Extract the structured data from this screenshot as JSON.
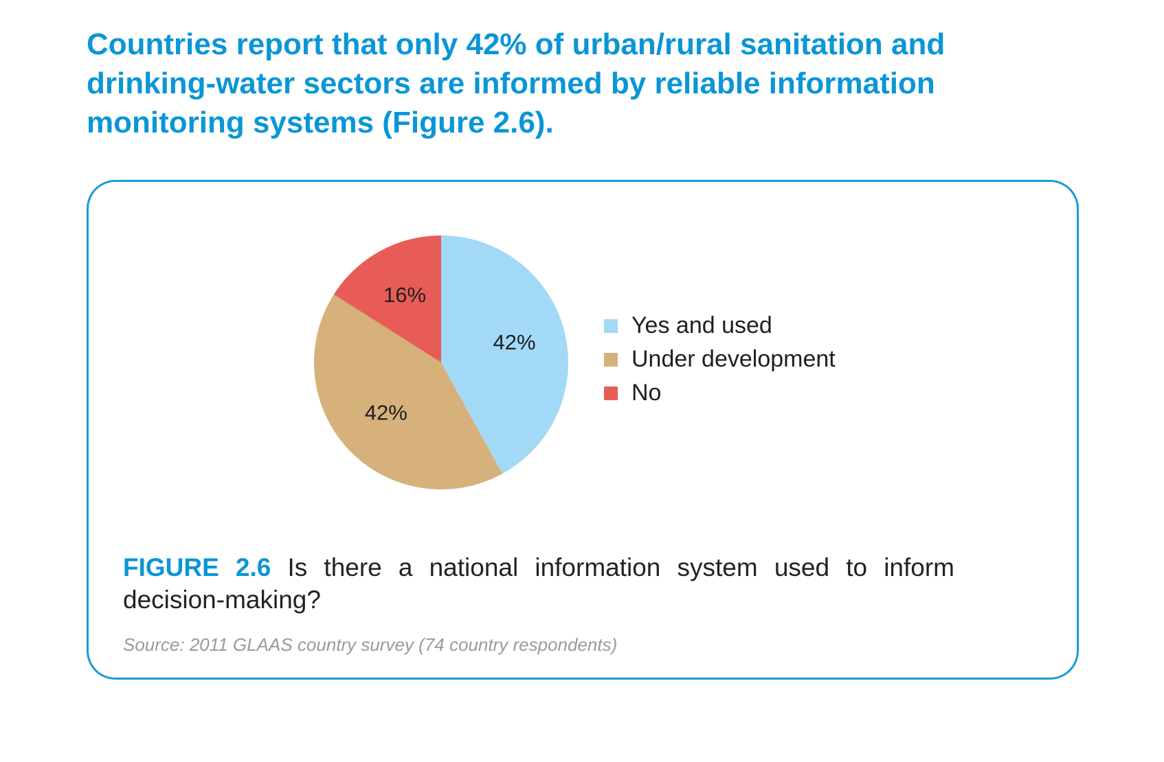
{
  "headline": "Countries report that only 42% of urban/rural sanitation and drinking-water sectors are informed by reliable information monitoring systems (Figure 2.6).",
  "figure": {
    "number": "FIGURE 2.6",
    "caption": "Is there a national information system used to inform decision-making?",
    "source": "Source: 2011 GLAAS country survey (74 country respondents)"
  },
  "chart_data": {
    "type": "pie",
    "title": "",
    "slices": [
      {
        "label": "Yes and used",
        "value": 42,
        "display": "42%",
        "color": "#a2d9f7"
      },
      {
        "label": "Under development",
        "value": 42,
        "display": "42%",
        "color": "#d6b17b"
      },
      {
        "label": "No",
        "value": 16,
        "display": "16%",
        "color": "#e85c57"
      }
    ],
    "start": "12 o'clock",
    "direction": "clockwise",
    "legend_position": "right"
  }
}
